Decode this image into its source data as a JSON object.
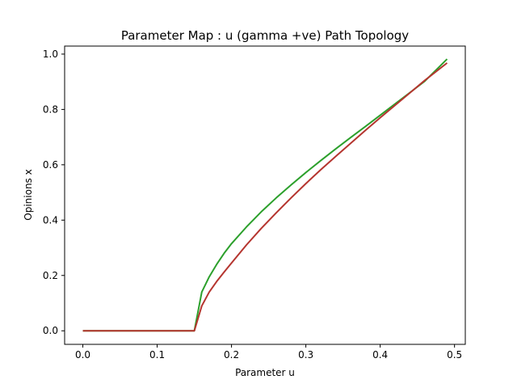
{
  "chart_data": {
    "type": "line",
    "title": "Parameter Map : u (gamma +ve) Path Topology",
    "xlabel": "Parameter u",
    "ylabel": "Opinions x",
    "xlim": [
      -0.0245,
      0.5145
    ],
    "ylim": [
      -0.049,
      1.029
    ],
    "x_ticks": [
      {
        "value": 0.0,
        "label": "0.0"
      },
      {
        "value": 0.1,
        "label": "0.1"
      },
      {
        "value": 0.2,
        "label": "0.2"
      },
      {
        "value": 0.3,
        "label": "0.3"
      },
      {
        "value": 0.4,
        "label": "0.4"
      },
      {
        "value": 0.5,
        "label": "0.5"
      }
    ],
    "y_ticks": [
      {
        "value": 0.0,
        "label": "0.0"
      },
      {
        "value": 0.2,
        "label": "0.2"
      },
      {
        "value": 0.4,
        "label": "0.4"
      },
      {
        "value": 0.6,
        "label": "0.6"
      },
      {
        "value": 0.8,
        "label": "0.8"
      },
      {
        "value": 1.0,
        "label": "1.0"
      }
    ],
    "grid": false,
    "legend": "none",
    "series": [
      {
        "color": "#2ca02c",
        "x": [
          0.0,
          0.05,
          0.1,
          0.15,
          0.16,
          0.17,
          0.18,
          0.19,
          0.2,
          0.22,
          0.24,
          0.26,
          0.28,
          0.3,
          0.32,
          0.34,
          0.36,
          0.38,
          0.4,
          0.42,
          0.44,
          0.46,
          0.49
        ],
        "y": [
          0.0,
          0.0,
          0.0,
          0.0,
          0.14,
          0.195,
          0.24,
          0.28,
          0.315,
          0.375,
          0.43,
          0.48,
          0.527,
          0.572,
          0.615,
          0.657,
          0.698,
          0.738,
          0.779,
          0.82,
          0.861,
          0.902,
          0.982
        ]
      },
      {
        "color": "#b5352f",
        "x": [
          0.0,
          0.05,
          0.1,
          0.15,
          0.16,
          0.17,
          0.18,
          0.19,
          0.2,
          0.22,
          0.24,
          0.26,
          0.28,
          0.3,
          0.32,
          0.34,
          0.36,
          0.38,
          0.4,
          0.42,
          0.44,
          0.46,
          0.49
        ],
        "y": [
          0.0,
          0.0,
          0.0,
          0.0,
          0.09,
          0.14,
          0.178,
          0.212,
          0.245,
          0.31,
          0.37,
          0.426,
          0.48,
          0.532,
          0.582,
          0.63,
          0.677,
          0.724,
          0.77,
          0.815,
          0.86,
          0.905,
          0.968
        ]
      }
    ]
  }
}
